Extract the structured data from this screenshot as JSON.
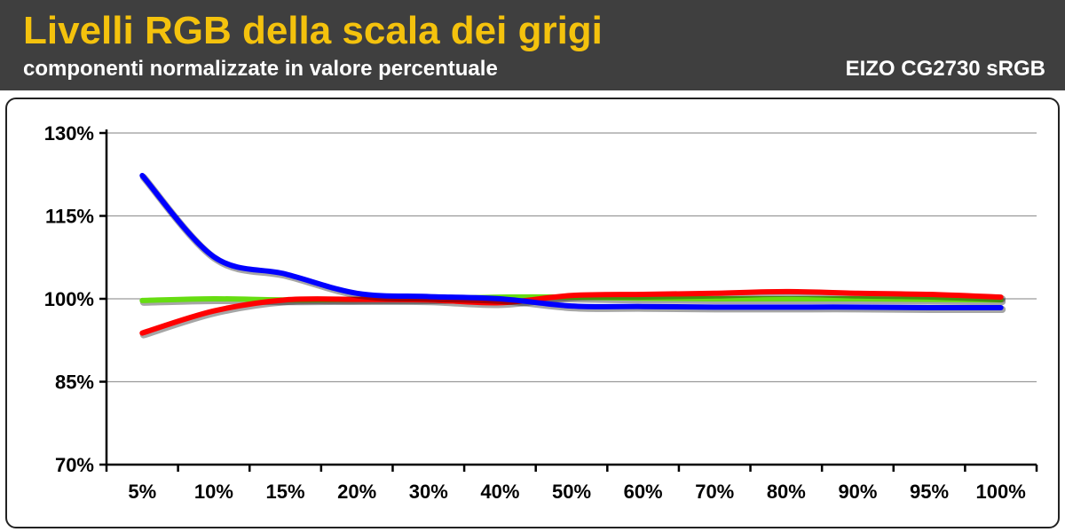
{
  "header": {
    "title": "Livelli RGB della scala dei grigi",
    "subtitle": "componenti normalizzate in valore percentuale",
    "device": "EIZO CG2730  sRGB"
  },
  "colors": {
    "header_bg": "#3f3f3f",
    "title": "#f4c20d",
    "red": "#ff0000",
    "green": "#66dd11",
    "blue": "#0000ff"
  },
  "chart_data": {
    "type": "line",
    "categories": [
      "5%",
      "10%",
      "15%",
      "20%",
      "30%",
      "40%",
      "50%",
      "60%",
      "70%",
      "80%",
      "90%",
      "95%",
      "100%"
    ],
    "ylim": [
      70,
      130
    ],
    "yticks": [
      70,
      85,
      100,
      115,
      130
    ],
    "ytick_labels": [
      "70%",
      "85%",
      "100%",
      "115%",
      "130%"
    ],
    "grid": true,
    "series": [
      {
        "color": "#66dd11",
        "values": [
          99.7,
          100.0,
          99.8,
          99.9,
          100.0,
          100.3,
          100.3,
          100.1,
          100.0,
          100.0,
          100.0,
          99.9,
          99.8
        ]
      },
      {
        "color": "#ff0000",
        "values": [
          93.8,
          97.8,
          99.8,
          99.9,
          99.8,
          99.3,
          100.6,
          100.8,
          101.0,
          101.3,
          101.0,
          100.8,
          100.3
        ]
      },
      {
        "color": "#0000ff",
        "values": [
          122.3,
          107.6,
          104.5,
          101.0,
          100.4,
          100.0,
          98.7,
          98.6,
          98.5,
          98.5,
          98.5,
          98.4,
          98.4
        ]
      }
    ]
  }
}
